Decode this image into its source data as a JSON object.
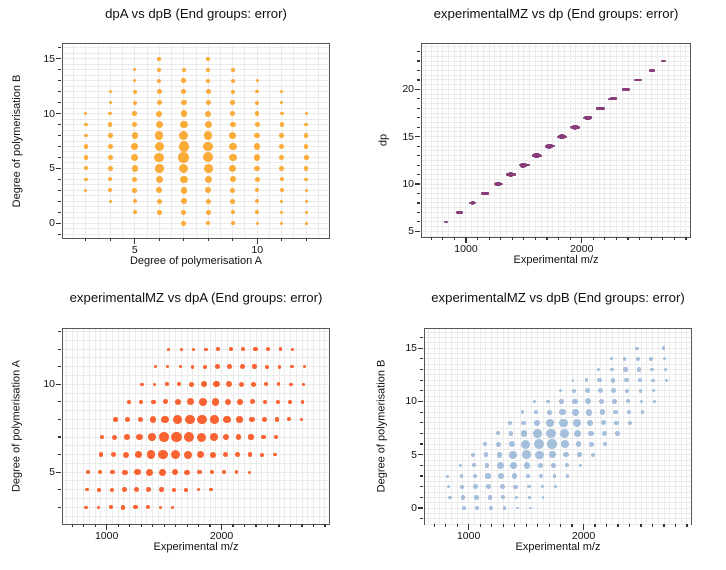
{
  "figure": {
    "background_color": "#ffffff",
    "frame_color": "#54585c",
    "grid_color": "#ebebeb",
    "tick_color": "#333333",
    "text_color": "#111111"
  },
  "dataset": {
    "fields": [
      "dpA",
      "dpB",
      "dp",
      "mz",
      "intensity"
    ],
    "points": [
      [
        3,
        3,
        6,
        820,
        0.15
      ],
      [
        3,
        4,
        7,
        928,
        0.18
      ],
      [
        3,
        5,
        8,
        1036,
        0.24
      ],
      [
        3,
        6,
        9,
        1144,
        0.28
      ],
      [
        3,
        7,
        10,
        1252,
        0.27
      ],
      [
        3,
        8,
        11,
        1360,
        0.23
      ],
      [
        3,
        9,
        12,
        1468,
        0.18
      ],
      [
        3,
        10,
        13,
        1576,
        0.15
      ],
      [
        4,
        2,
        6,
        828,
        0.16
      ],
      [
        4,
        3,
        7,
        936,
        0.2
      ],
      [
        4,
        4,
        8,
        1044,
        0.25
      ],
      [
        4,
        5,
        9,
        1152,
        0.33
      ],
      [
        4,
        6,
        10,
        1260,
        0.38
      ],
      [
        4,
        7,
        11,
        1368,
        0.36
      ],
      [
        4,
        8,
        12,
        1476,
        0.31
      ],
      [
        4,
        9,
        13,
        1584,
        0.25
      ],
      [
        4,
        10,
        14,
        1692,
        0.2
      ],
      [
        4,
        11,
        15,
        1800,
        0.16
      ],
      [
        4,
        12,
        16,
        1908,
        0.14
      ],
      [
        5,
        1,
        6,
        836,
        0.2
      ],
      [
        5,
        2,
        7,
        944,
        0.24
      ],
      [
        5,
        3,
        8,
        1052,
        0.3
      ],
      [
        5,
        4,
        9,
        1160,
        0.38
      ],
      [
        5,
        5,
        10,
        1268,
        0.5
      ],
      [
        5,
        6,
        11,
        1376,
        0.58
      ],
      [
        5,
        7,
        12,
        1484,
        0.56
      ],
      [
        5,
        8,
        13,
        1592,
        0.48
      ],
      [
        5,
        9,
        14,
        1700,
        0.38
      ],
      [
        5,
        10,
        15,
        1808,
        0.3
      ],
      [
        5,
        11,
        16,
        1916,
        0.24
      ],
      [
        5,
        12,
        17,
        2024,
        0.21
      ],
      [
        5,
        13,
        18,
        2132,
        0.17
      ],
      [
        5,
        14,
        19,
        2240,
        0.15
      ],
      [
        6,
        1,
        7,
        952,
        0.31
      ],
      [
        6,
        2,
        8,
        1060,
        0.37
      ],
      [
        6,
        3,
        9,
        1168,
        0.46
      ],
      [
        6,
        4,
        10,
        1276,
        0.58
      ],
      [
        6,
        5,
        11,
        1384,
        0.76
      ],
      [
        6,
        6,
        12,
        1492,
        0.88
      ],
      [
        6,
        7,
        13,
        1600,
        0.84
      ],
      [
        6,
        8,
        14,
        1708,
        0.72
      ],
      [
        6,
        9,
        15,
        1816,
        0.58
      ],
      [
        6,
        10,
        16,
        1924,
        0.46
      ],
      [
        6,
        11,
        17,
        2032,
        0.37
      ],
      [
        6,
        12,
        18,
        2140,
        0.32
      ],
      [
        6,
        13,
        19,
        2248,
        0.26
      ],
      [
        6,
        14,
        20,
        2356,
        0.23
      ],
      [
        6,
        15,
        21,
        2464,
        0.19
      ],
      [
        7,
        0,
        7,
        960,
        0.32
      ],
      [
        7,
        1,
        8,
        1068,
        0.35
      ],
      [
        7,
        2,
        9,
        1176,
        0.42
      ],
      [
        7,
        3,
        10,
        1284,
        0.52
      ],
      [
        7,
        4,
        11,
        1392,
        0.66
      ],
      [
        7,
        5,
        12,
        1500,
        0.86
      ],
      [
        7,
        6,
        13,
        1608,
        1.0
      ],
      [
        7,
        7,
        14,
        1716,
        0.96
      ],
      [
        7,
        8,
        15,
        1824,
        0.82
      ],
      [
        7,
        9,
        16,
        1932,
        0.66
      ],
      [
        7,
        10,
        17,
        2040,
        0.52
      ],
      [
        7,
        11,
        18,
        2148,
        0.42
      ],
      [
        7,
        12,
        19,
        2256,
        0.36
      ],
      [
        7,
        13,
        20,
        2364,
        0.3
      ],
      [
        7,
        14,
        21,
        2472,
        0.26
      ],
      [
        8,
        0,
        8,
        1076,
        0.29
      ],
      [
        8,
        1,
        9,
        1184,
        0.32
      ],
      [
        8,
        2,
        10,
        1292,
        0.39
      ],
      [
        8,
        3,
        11,
        1400,
        0.48
      ],
      [
        8,
        4,
        12,
        1508,
        0.61
      ],
      [
        8,
        5,
        13,
        1616,
        0.79
      ],
      [
        8,
        6,
        14,
        1724,
        0.92
      ],
      [
        8,
        7,
        15,
        1832,
        0.88
      ],
      [
        8,
        8,
        16,
        1940,
        0.75
      ],
      [
        8,
        9,
        17,
        2048,
        0.61
      ],
      [
        8,
        10,
        18,
        2156,
        0.48
      ],
      [
        8,
        11,
        19,
        2264,
        0.39
      ],
      [
        8,
        12,
        20,
        2372,
        0.33
      ],
      [
        8,
        13,
        21,
        2480,
        0.28
      ],
      [
        8,
        14,
        22,
        2588,
        0.24
      ],
      [
        8,
        15,
        23,
        2696,
        0.2
      ],
      [
        9,
        0,
        9,
        1192,
        0.22
      ],
      [
        9,
        1,
        10,
        1300,
        0.24
      ],
      [
        9,
        2,
        11,
        1408,
        0.29
      ],
      [
        9,
        3,
        12,
        1516,
        0.35
      ],
      [
        9,
        4,
        13,
        1624,
        0.45
      ],
      [
        9,
        5,
        14,
        1732,
        0.58
      ],
      [
        9,
        6,
        15,
        1840,
        0.68
      ],
      [
        9,
        7,
        16,
        1948,
        0.65
      ],
      [
        9,
        8,
        17,
        2056,
        0.56
      ],
      [
        9,
        9,
        18,
        2164,
        0.45
      ],
      [
        9,
        10,
        19,
        2272,
        0.35
      ],
      [
        9,
        11,
        20,
        2380,
        0.29
      ],
      [
        9,
        12,
        21,
        2488,
        0.24
      ],
      [
        9,
        13,
        22,
        2596,
        0.2
      ],
      [
        9,
        14,
        23,
        2704,
        0.18
      ],
      [
        10,
        0,
        10,
        1308,
        0.16
      ],
      [
        10,
        1,
        11,
        1416,
        0.18
      ],
      [
        10,
        2,
        12,
        1524,
        0.21
      ],
      [
        10,
        3,
        13,
        1632,
        0.26
      ],
      [
        10,
        4,
        14,
        1740,
        0.33
      ],
      [
        10,
        5,
        15,
        1848,
        0.43
      ],
      [
        10,
        6,
        16,
        1956,
        0.5
      ],
      [
        10,
        7,
        17,
        2064,
        0.48
      ],
      [
        10,
        8,
        18,
        2172,
        0.41
      ],
      [
        10,
        9,
        19,
        2280,
        0.33
      ],
      [
        10,
        10,
        20,
        2388,
        0.26
      ],
      [
        10,
        11,
        21,
        2496,
        0.21
      ],
      [
        10,
        12,
        22,
        2604,
        0.18
      ],
      [
        10,
        13,
        23,
        2712,
        0.15
      ],
      [
        11,
        0,
        11,
        1424,
        0.12
      ],
      [
        11,
        1,
        12,
        1532,
        0.13
      ],
      [
        11,
        2,
        13,
        1640,
        0.16
      ],
      [
        11,
        3,
        14,
        1748,
        0.2
      ],
      [
        11,
        4,
        15,
        1856,
        0.25
      ],
      [
        11,
        5,
        16,
        1964,
        0.33
      ],
      [
        11,
        6,
        17,
        2072,
        0.38
      ],
      [
        11,
        7,
        18,
        2180,
        0.36
      ],
      [
        11,
        8,
        19,
        2288,
        0.31
      ],
      [
        11,
        9,
        20,
        2396,
        0.25
      ],
      [
        11,
        10,
        21,
        2504,
        0.2
      ],
      [
        11,
        11,
        22,
        2612,
        0.16
      ],
      [
        11,
        12,
        23,
        2720,
        0.14
      ],
      [
        12,
        0,
        12,
        1540,
        0.1
      ],
      [
        12,
        1,
        13,
        1648,
        0.11
      ],
      [
        12,
        2,
        14,
        1756,
        0.13
      ],
      [
        12,
        3,
        15,
        1864,
        0.16
      ],
      [
        12,
        4,
        16,
        1972,
        0.2
      ],
      [
        12,
        5,
        17,
        2080,
        0.26
      ],
      [
        12,
        6,
        18,
        2188,
        0.3
      ],
      [
        12,
        7,
        19,
        2296,
        0.29
      ],
      [
        12,
        8,
        20,
        2404,
        0.25
      ],
      [
        12,
        9,
        21,
        2512,
        0.2
      ],
      [
        12,
        10,
        22,
        2620,
        0.16
      ]
    ]
  },
  "chart_data": [
    {
      "id": "tl",
      "type": "scatter",
      "title": "dpA vs dpB (End groups: error)",
      "xlabel": "Degree of polymerisation A",
      "ylabel": "Degree of polymerisation B",
      "x_field": "dpA",
      "y_field": "dpB",
      "marker_color": "#FBAC38",
      "xlim": [
        2.07,
        12.93
      ],
      "ylim": [
        -1.35,
        16.35
      ],
      "x_major_ticks": [
        5,
        10
      ],
      "y_major_ticks": [
        0,
        5,
        10,
        15
      ],
      "x_minor_step": 1,
      "y_minor_step": 1,
      "x_grid_step": 0.5,
      "y_grid_step": 0.5,
      "marker_r_min": 1.0,
      "marker_r_max": 5.3,
      "grid": true,
      "legend": "none"
    },
    {
      "id": "tr",
      "type": "scatter",
      "title": "experimentalMZ vs dp (End groups: error)",
      "xlabel": "Experimental m/z",
      "ylabel": "dp",
      "x_field": "mz",
      "y_field": "dp",
      "marker_color": "#873C79",
      "xlim": [
        620,
        2935
      ],
      "ylim": [
        4.4,
        24.8
      ],
      "x_major_ticks": [
        1000,
        2000
      ],
      "y_major_ticks": [
        5,
        10,
        15,
        20
      ],
      "x_minor_step": 100,
      "y_minor_step": 1,
      "x_grid_step": 50,
      "y_grid_step": 0.5,
      "marker_r_min": 0.9,
      "marker_r_max": 2.7,
      "grid": true,
      "legend": "none"
    },
    {
      "id": "bl",
      "type": "scatter",
      "title": "experimentalMZ vs dpA (End groups: error)",
      "xlabel": "Experimental m/z",
      "ylabel": "Degree of polymerisation A",
      "x_field": "mz",
      "y_field": "dpA",
      "marker_color": "#F96231",
      "xlim": [
        620,
        2935
      ],
      "ylim": [
        2.05,
        13.15
      ],
      "x_major_ticks": [
        1000,
        2000
      ],
      "y_major_ticks": [
        5,
        10
      ],
      "x_minor_step": 100,
      "y_minor_step": 1,
      "x_grid_step": 50,
      "y_grid_step": 0.5,
      "marker_r_min": 1.0,
      "marker_r_max": 5.3,
      "grid": true,
      "legend": "none"
    },
    {
      "id": "br",
      "type": "scatter",
      "title": "experimentalMZ vs dpB (End groups: error)",
      "xlabel": "Experimental m/z",
      "ylabel": "Degree of polymerisation B",
      "x_field": "mz",
      "y_field": "dpB",
      "marker_color": "#A4BEDC",
      "xlim": [
        620,
        2935
      ],
      "ylim": [
        -1.5,
        16.8
      ],
      "x_major_ticks": [
        1000,
        2000
      ],
      "y_major_ticks": [
        0,
        5,
        10,
        15
      ],
      "x_minor_step": 100,
      "y_minor_step": 1,
      "x_grid_step": 50,
      "y_grid_step": 0.5,
      "marker_r_min": 0.9,
      "marker_r_max": 5.0,
      "grid": true,
      "legend": "none"
    }
  ]
}
